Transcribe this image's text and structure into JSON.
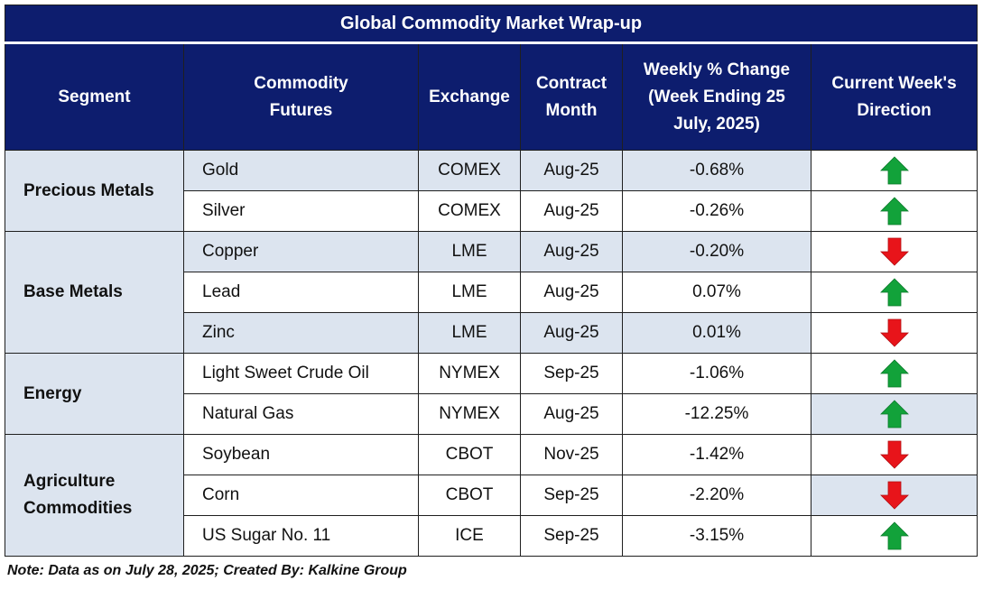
{
  "title": "Global Commodity Market Wrap-up",
  "headers": {
    "segment": "Segment",
    "commodity": "Commodity Futures",
    "exchange": "Exchange",
    "contract": "Contract Month",
    "weekly": "Weekly % Change (Week Ending  25 July, 2025)",
    "direction": "Current Week's Direction"
  },
  "segments": {
    "precious": "Precious Metals",
    "base": "Base Metals",
    "energy": "Energy",
    "agri": "Agriculture Commodities"
  },
  "rows": [
    {
      "name": "Gold",
      "exchange": "COMEX",
      "month": "Aug-25",
      "change": "-0.68%",
      "direction": "up-arrow-icon"
    },
    {
      "name": "Silver",
      "exchange": "COMEX",
      "month": "Aug-25",
      "change": "-0.26%",
      "direction": "up-arrow-icon"
    },
    {
      "name": "Copper",
      "exchange": "LME",
      "month": "Aug-25",
      "change": "-0.20%",
      "direction": "down-arrow-icon"
    },
    {
      "name": "Lead",
      "exchange": "LME",
      "month": "Aug-25",
      "change": "0.07%",
      "direction": "up-arrow-icon"
    },
    {
      "name": "Zinc",
      "exchange": "LME",
      "month": "Aug-25",
      "change": "0.01%",
      "direction": "down-arrow-icon"
    },
    {
      "name": "Light Sweet Crude Oil",
      "exchange": "NYMEX",
      "month": "Sep-25",
      "change": "-1.06%",
      "direction": "up-arrow-icon"
    },
    {
      "name": "Natural Gas",
      "exchange": "NYMEX",
      "month": "Aug-25",
      "change": "-12.25%",
      "direction": "up-arrow-icon"
    },
    {
      "name": "Soybean",
      "exchange": "CBOT",
      "month": "Nov-25",
      "change": "-1.42%",
      "direction": "down-arrow-icon"
    },
    {
      "name": "Corn",
      "exchange": "CBOT",
      "month": "Sep-25",
      "change": "-2.20%",
      "direction": "down-arrow-icon"
    },
    {
      "name": "US Sugar No. 11",
      "exchange": "ICE",
      "month": "Sep-25",
      "change": "-3.15%",
      "direction": "up-arrow-icon"
    }
  ],
  "colors": {
    "header_bg": "#0d1d6e",
    "row_shade": "#dce4ef",
    "up": "#12a23a",
    "down": "#e8141a"
  },
  "note": "Note: Data as on July 28, 2025; Created By: Kalkine Group"
}
